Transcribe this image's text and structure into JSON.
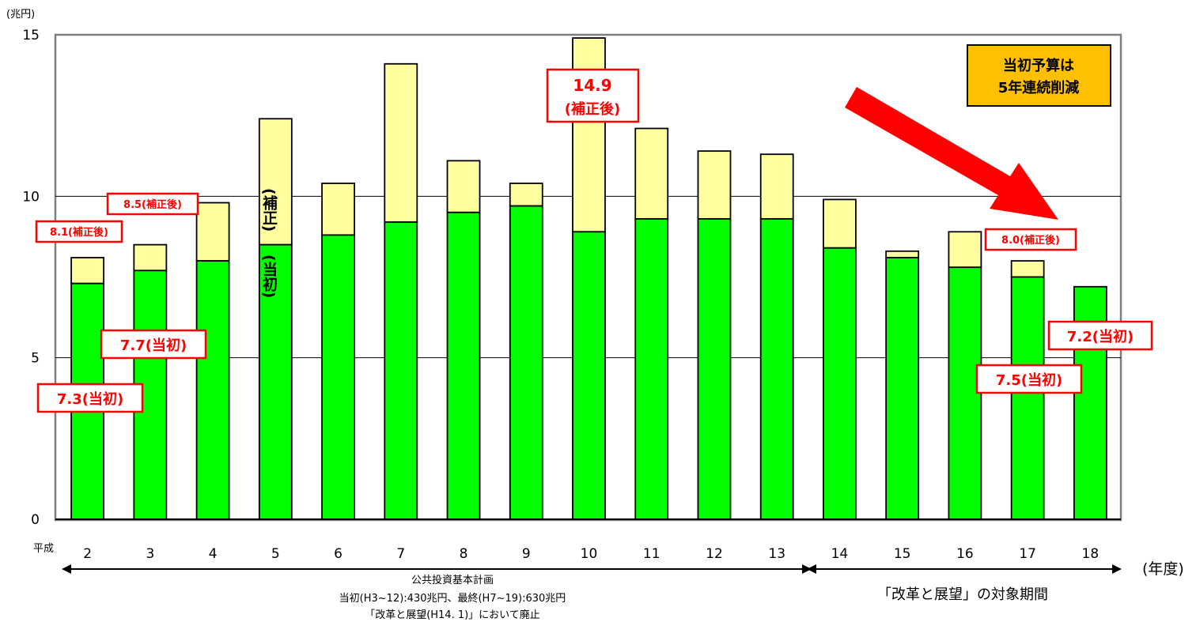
{
  "chart_data": {
    "type": "bar",
    "stacked": true,
    "unit_label": "(兆円)",
    "x_prefix": "平成",
    "x_unit_label": "(年度)",
    "categories": [
      "2",
      "3",
      "4",
      "5",
      "6",
      "7",
      "8",
      "9",
      "10",
      "11",
      "12",
      "13",
      "14",
      "15",
      "16",
      "17",
      "18"
    ],
    "series": [
      {
        "name": "",
        "color": "#00ff00",
        "values": [
          7.3,
          7.7,
          8.0,
          8.5,
          8.8,
          9.2,
          9.5,
          9.7,
          8.9,
          9.3,
          9.3,
          9.3,
          8.4,
          8.1,
          7.8,
          7.5,
          7.2
        ]
      },
      {
        "name": "",
        "color": "#ffffa0",
        "values": [
          0.8,
          0.8,
          1.8,
          3.9,
          1.6,
          4.9,
          1.6,
          0.7,
          6.0,
          2.8,
          2.1,
          2.0,
          1.5,
          0.2,
          1.1,
          0.5,
          0.0
        ]
      }
    ],
    "ylim": [
      0,
      15
    ],
    "yticks": [
      0,
      5,
      10,
      15
    ],
    "grid": "horizontal",
    "bar_inner_labels": {
      "index": 3,
      "upper": "(補正)",
      "lower": "(当初)"
    },
    "callouts": [
      {
        "text": "8.1(補正後)",
        "size": "small"
      },
      {
        "text": "8.5(補正後)",
        "size": "small"
      },
      {
        "text": "7.7(当初)",
        "size": "large"
      },
      {
        "text": "7.3(当初)",
        "size": "large"
      },
      {
        "line1": "14.9",
        "line2": "(補正後)",
        "size": "large"
      },
      {
        "text": "8.0(補正後)",
        "size": "small"
      },
      {
        "text": "7.2(当初)",
        "size": "large"
      },
      {
        "text": "7.5(当初)",
        "size": "large"
      }
    ],
    "note_box": {
      "line1": "当初予算は",
      "line2": "5年連続削減",
      "color": "#ffc000"
    },
    "periods": [
      {
        "lines": [
          "公共投資基本計画",
          "当初(H3~12):430兆円、最終(H7~19):630兆円",
          "「改革と展望(H14. 1)」において廃止"
        ]
      },
      {
        "lines": [
          "「改革と展望」の対象期間"
        ]
      }
    ]
  }
}
